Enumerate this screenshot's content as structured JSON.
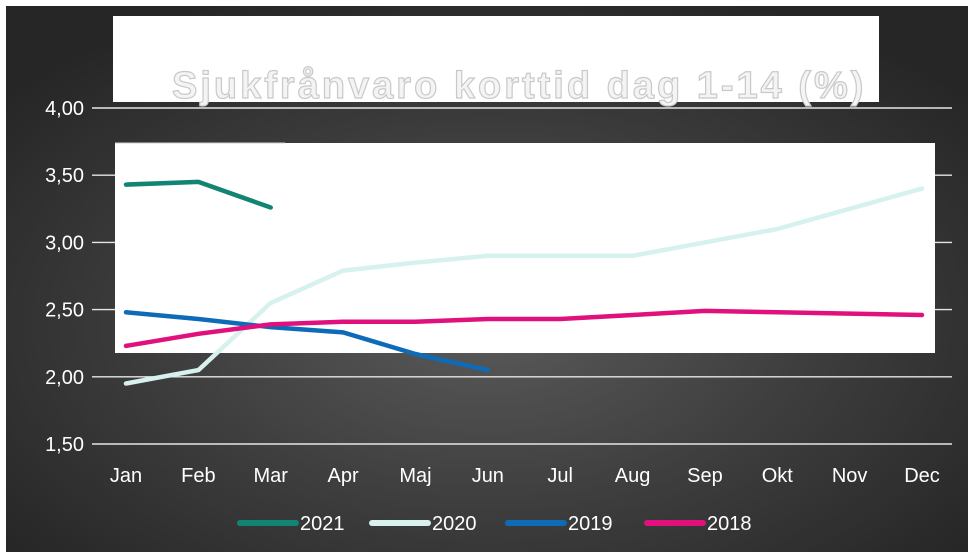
{
  "chart_data": {
    "type": "line",
    "title": "Sjukfrånvaro korttid dag 1-14 (%)",
    "xlabel": "",
    "ylabel": "",
    "categories": [
      "Jan",
      "Feb",
      "Mar",
      "Apr",
      "Maj",
      "Jun",
      "Jul",
      "Aug",
      "Sep",
      "Okt",
      "Nov",
      "Dec"
    ],
    "ylim": [
      1.5,
      4.0
    ],
    "yticks": [
      "4,00",
      "3,50",
      "3,00",
      "2,50",
      "2,00",
      "1,50"
    ],
    "grid": true,
    "legend_position": "bottom",
    "series": [
      {
        "name": "2021",
        "color": "#118474",
        "values": [
          3.43,
          3.45,
          3.26,
          null,
          null,
          null,
          null,
          null,
          null,
          null,
          null,
          null
        ]
      },
      {
        "name": "2020",
        "color": "#d7f1ee",
        "values": [
          1.95,
          2.05,
          2.55,
          2.79,
          2.85,
          2.9,
          2.9,
          2.9,
          3.0,
          3.1,
          3.25,
          3.4
        ]
      },
      {
        "name": "2019",
        "color": "#0d6bb8",
        "values": [
          2.48,
          2.43,
          2.37,
          2.33,
          2.17,
          2.05,
          null,
          null,
          null,
          null,
          null,
          null
        ]
      },
      {
        "name": "2018",
        "color": "#e0117d",
        "values": [
          2.23,
          2.32,
          2.39,
          2.41,
          2.41,
          2.43,
          2.43,
          2.46,
          2.49,
          2.48,
          2.47,
          2.46
        ]
      }
    ]
  }
}
